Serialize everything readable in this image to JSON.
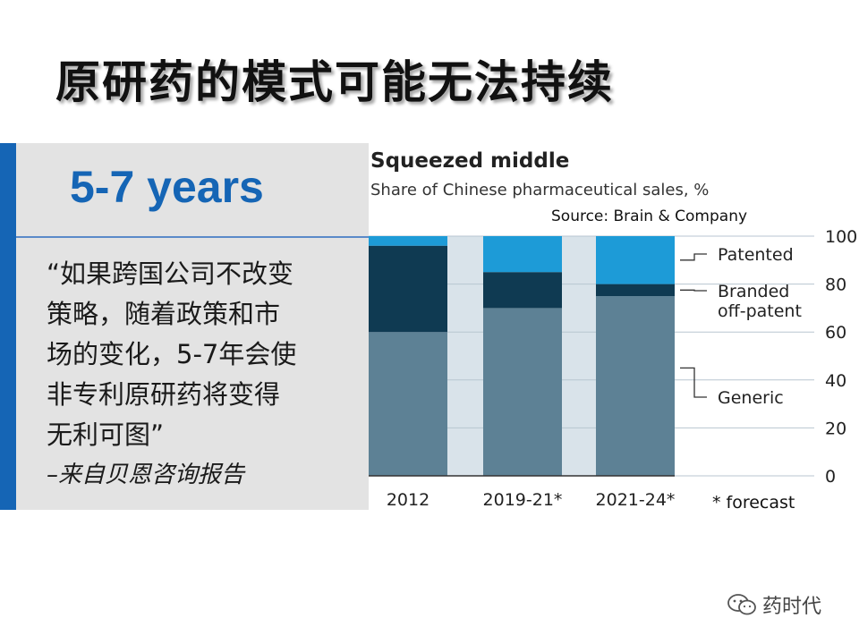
{
  "slide": {
    "title": "原研药的模式可能无法持续"
  },
  "left_panel": {
    "heading": "5-7 years",
    "quote_lines": [
      "“如果跨国公司不改变",
      "策略，随着政策和市",
      "场的变化，5-7年会使",
      "非专利原研药将变得",
      "无利可图”"
    ],
    "attribution": "–来自贝恩咨询报告"
  },
  "chart_data": {
    "type": "bar",
    "stacked": true,
    "title": "Squeezed middle",
    "subtitle": "Share of Chinese pharmaceutical sales, %",
    "source": "Source: Brain & Company",
    "footnote": "* forecast",
    "categories": [
      "2012",
      "2019-21*",
      "2021-24*"
    ],
    "series": [
      {
        "name": "Generic",
        "values": [
          60,
          70,
          75
        ],
        "color": "#5d8195"
      },
      {
        "name": "Branded off-patent",
        "values": [
          36,
          15,
          5
        ],
        "color": "#0f3a52"
      },
      {
        "name": "Patented",
        "values": [
          4,
          15,
          20
        ],
        "color": "#1d9bd7"
      }
    ],
    "legend_labels": [
      [
        "Patented"
      ],
      [
        "Branded",
        "off-patent"
      ],
      [
        "Generic"
      ]
    ],
    "ylim": [
      0,
      100
    ],
    "yticks": [
      "0",
      "20",
      "40",
      "60",
      "80",
      "100"
    ],
    "legend_position": "right",
    "colors": {
      "plot_background": "#d9e3ea",
      "text": "#222222"
    }
  },
  "watermark": {
    "text": "药时代",
    "icon": "wechat-icon"
  }
}
